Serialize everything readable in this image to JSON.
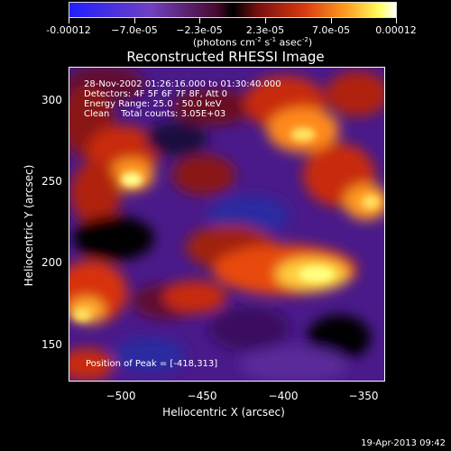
{
  "colorbar": {
    "labels": [
      "-0.00012",
      "−7.0e-05",
      "−2.3e-05",
      "2.3e-05",
      "7.0e-05",
      "0.00012"
    ],
    "units_prefix": "(photons cm",
    "units_exp1": "-2",
    "units_mid": " s",
    "units_exp2": "-1",
    "units_mid2": " asec",
    "units_exp3": "-2",
    "units_suffix": ")"
  },
  "chart_data": {
    "type": "heatmap",
    "title": "Reconstructed RHESSI Image",
    "xlabel": "Heliocentric X (arcsec)",
    "ylabel": "Heliocentric Y (arcsec)",
    "xlim": [
      -532,
      -338
    ],
    "ylim": [
      127,
      320
    ],
    "x_ticks": [
      "−500",
      "−450",
      "−400",
      "−350"
    ],
    "x_tick_values": [
      -500,
      -450,
      -400,
      -350
    ],
    "y_ticks": [
      "300",
      "250",
      "200",
      "150"
    ],
    "y_tick_values": [
      300,
      250,
      200,
      150
    ],
    "color_range": [
      -0.00012,
      0.00012
    ],
    "info_lines": [
      "28-Nov-2002 01:26:16.000 to 01:30:40.000",
      "Detectors: 4F 5F 6F 7F 8F, Att 0",
      "Energy Range: 25.0 - 50.0 keV",
      "Clean    Total counts: 3.05E+03"
    ],
    "peak_text": "Position of Peak = [-418,313]"
  },
  "timestamp": "19-Apr-2013 09:42"
}
